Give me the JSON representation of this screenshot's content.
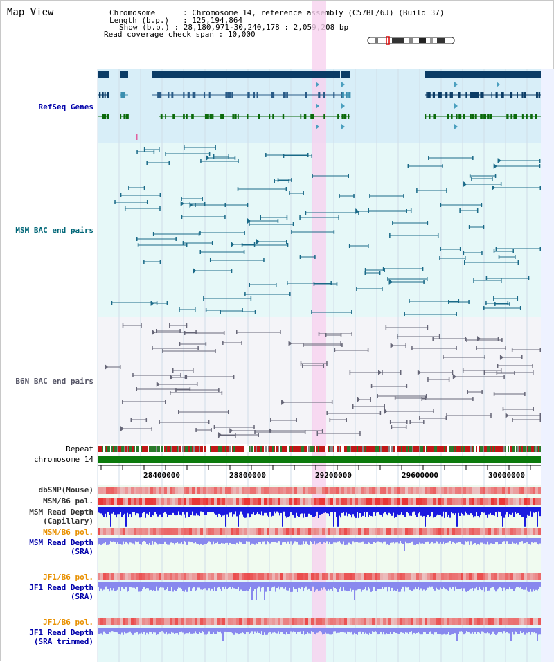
{
  "view": {
    "title": "Map View"
  },
  "info": {
    "chromosome_label": "Chromosome",
    "chromosome_value": "Chromosome 14, reference assembly (C57BL/6J) (Build 37)",
    "length_label": "Length (b.p.)",
    "length_value": "125,194,864",
    "show_label": "Show (b.p.)",
    "show_value": "28,180,971-30,240,178 : 2,059,208 bp",
    "coverage_label": "Read coverage check span",
    "coverage_value": "10,000"
  },
  "tracks": {
    "refseq": "RefSeq Genes",
    "msm_bac": "MSM BAC end pairs",
    "b6n_bac": "B6N BAC end pairs",
    "repeat": "Repeat",
    "chromosome": "chromosome 14",
    "dbsnp": "dbSNP(Mouse)",
    "msm_b6_pol_1": "MSM/B6 pol.",
    "msm_depth_cap": "MSM Read Depth\n(Capillary)",
    "msm_b6_pol_2": "MSM/B6 pol.",
    "msm_depth_sra": "MSM Read Depth\n(SRA)",
    "jf1_b6_pol_1": "JF1/B6 pol.",
    "jf1_depth_sra": "JF1 Read Depth\n(SRA)",
    "jf1_b6_pol_2": "JF1/B6 pol.",
    "jf1_depth_trim": "JF1 Read Depth\n(SRA trimmed)"
  },
  "axis": {
    "ticks": [
      "28400000",
      "28800000",
      "29200000",
      "29600000",
      "30000000"
    ]
  },
  "colors": {
    "refseq_bg": "#d8eef8",
    "msm_bg": "#e6f8f8",
    "b6n_bg": "#f4f4f8",
    "highlight": "#f7d2ef",
    "refseq_label": "#0000aa",
    "msm_label": "#006677",
    "b6n_label": "#555566",
    "gene_blue": "#0b3c66",
    "gene_green": "#0b6a0b",
    "chromosome": "#0b7a0b",
    "depth_dark": "#1a1adf",
    "depth_light": "#8888ee",
    "pol_red": "#e03030",
    "orange_label": "#e89000"
  }
}
